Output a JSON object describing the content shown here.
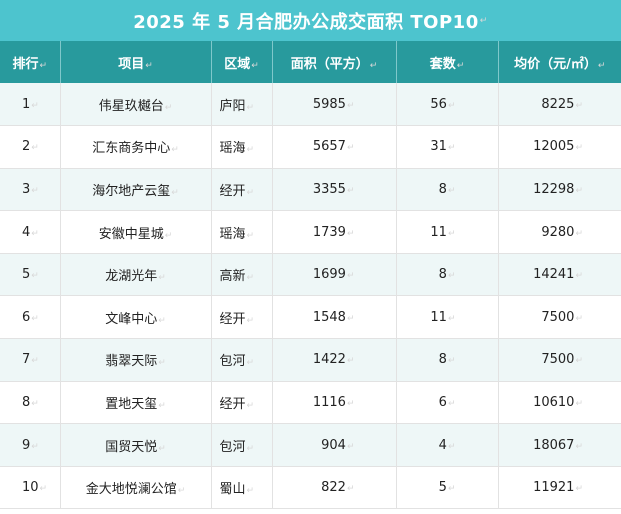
{
  "title": "2025 年 5 月合肥办公成交面积 TOP10",
  "mark": "↵",
  "headers": [
    "排行",
    "项目",
    "区域",
    "面积（平方）",
    "套数",
    "均价（元/㎡）"
  ],
  "rows": [
    {
      "rank": "1",
      "project": "伟星玖樾台",
      "district": "庐阳",
      "area": "5985",
      "units": "56",
      "price": "8225"
    },
    {
      "rank": "2",
      "project": "汇东商务中心",
      "district": "瑶海",
      "area": "5657",
      "units": "31",
      "price": "12005"
    },
    {
      "rank": "3",
      "project": "海尔地产云玺",
      "district": "经开",
      "area": "3355",
      "units": "8",
      "price": "12298"
    },
    {
      "rank": "4",
      "project": "安徽中星城",
      "district": "瑶海",
      "area": "1739",
      "units": "11",
      "price": "9280"
    },
    {
      "rank": "5",
      "project": "龙湖光年",
      "district": "高新",
      "area": "1699",
      "units": "8",
      "price": "14241"
    },
    {
      "rank": "6",
      "project": "文峰中心",
      "district": "经开",
      "area": "1548",
      "units": "11",
      "price": "7500"
    },
    {
      "rank": "7",
      "project": "翡翠天际",
      "district": "包河",
      "area": "1422",
      "units": "8",
      "price": "7500"
    },
    {
      "rank": "8",
      "project": "置地天玺",
      "district": "经开",
      "area": "1116",
      "units": "6",
      "price": "10610"
    },
    {
      "rank": "9",
      "project": "国贸天悦",
      "district": "包河",
      "area": "904",
      "units": "4",
      "price": "18067"
    },
    {
      "rank": "10",
      "project": "金大地悦澜公馆",
      "district": "蜀山",
      "area": "822",
      "units": "5",
      "price": "11921"
    }
  ],
  "colors": {
    "title_bg": "#4dc4ce",
    "header_bg": "#289a9d",
    "stripe": "#eef7f7"
  }
}
